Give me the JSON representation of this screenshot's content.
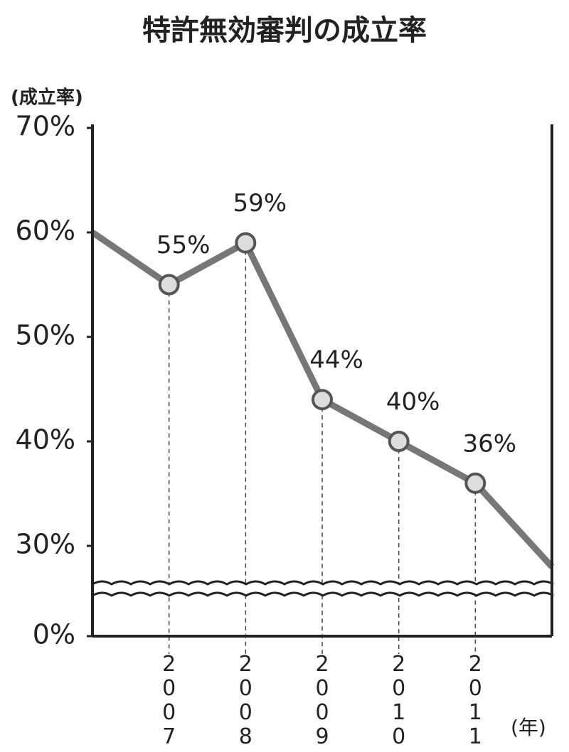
{
  "chart_data": {
    "type": "line",
    "title": "特許無効審判の成立率",
    "y_label": "(成立率)",
    "x_label": "(年)",
    "categories": [
      null,
      "2007",
      "2008",
      "2009",
      "2010",
      "2011",
      null
    ],
    "values": [
      60,
      55,
      59,
      44,
      40,
      36,
      28
    ],
    "value_labels": [
      null,
      "55%",
      "59%",
      "44%",
      "40%",
      "36%",
      null
    ],
    "color": "#777777",
    "ylim": [
      0,
      70
    ],
    "yticks": [
      {
        "value": 0,
        "label": "0%"
      },
      {
        "value": 30,
        "label": "30%"
      },
      {
        "value": 40,
        "label": "40%"
      },
      {
        "value": 50,
        "label": "50%"
      },
      {
        "value": 60,
        "label": "60%"
      },
      {
        "value": 70,
        "label": "70%"
      }
    ],
    "axis_break": true
  }
}
